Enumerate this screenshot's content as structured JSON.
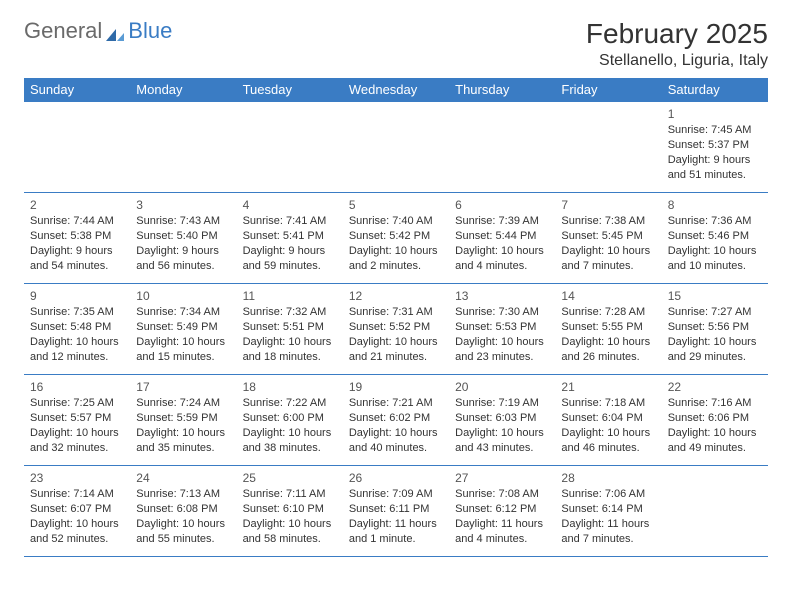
{
  "logo": {
    "part1": "General",
    "part2": "Blue"
  },
  "header": {
    "title": "February 2025",
    "location": "Stellanello, Liguria, Italy"
  },
  "colors": {
    "accent": "#3a7cc4",
    "text": "#333333",
    "muted": "#555555",
    "background": "#ffffff"
  },
  "typography": {
    "title_fontsize": 28,
    "location_fontsize": 16,
    "header_fontsize": 13,
    "cell_fontsize": 11,
    "daynum_fontsize": 12
  },
  "calendar": {
    "type": "table",
    "columns": [
      "Sunday",
      "Monday",
      "Tuesday",
      "Wednesday",
      "Thursday",
      "Friday",
      "Saturday"
    ],
    "weeks": [
      [
        null,
        null,
        null,
        null,
        null,
        null,
        {
          "n": "1",
          "sr": "7:45 AM",
          "ss": "5:37 PM",
          "dl": "9 hours and 51 minutes."
        }
      ],
      [
        {
          "n": "2",
          "sr": "7:44 AM",
          "ss": "5:38 PM",
          "dl": "9 hours and 54 minutes."
        },
        {
          "n": "3",
          "sr": "7:43 AM",
          "ss": "5:40 PM",
          "dl": "9 hours and 56 minutes."
        },
        {
          "n": "4",
          "sr": "7:41 AM",
          "ss": "5:41 PM",
          "dl": "9 hours and 59 minutes."
        },
        {
          "n": "5",
          "sr": "7:40 AM",
          "ss": "5:42 PM",
          "dl": "10 hours and 2 minutes."
        },
        {
          "n": "6",
          "sr": "7:39 AM",
          "ss": "5:44 PM",
          "dl": "10 hours and 4 minutes."
        },
        {
          "n": "7",
          "sr": "7:38 AM",
          "ss": "5:45 PM",
          "dl": "10 hours and 7 minutes."
        },
        {
          "n": "8",
          "sr": "7:36 AM",
          "ss": "5:46 PM",
          "dl": "10 hours and 10 minutes."
        }
      ],
      [
        {
          "n": "9",
          "sr": "7:35 AM",
          "ss": "5:48 PM",
          "dl": "10 hours and 12 minutes."
        },
        {
          "n": "10",
          "sr": "7:34 AM",
          "ss": "5:49 PM",
          "dl": "10 hours and 15 minutes."
        },
        {
          "n": "11",
          "sr": "7:32 AM",
          "ss": "5:51 PM",
          "dl": "10 hours and 18 minutes."
        },
        {
          "n": "12",
          "sr": "7:31 AM",
          "ss": "5:52 PM",
          "dl": "10 hours and 21 minutes."
        },
        {
          "n": "13",
          "sr": "7:30 AM",
          "ss": "5:53 PM",
          "dl": "10 hours and 23 minutes."
        },
        {
          "n": "14",
          "sr": "7:28 AM",
          "ss": "5:55 PM",
          "dl": "10 hours and 26 minutes."
        },
        {
          "n": "15",
          "sr": "7:27 AM",
          "ss": "5:56 PM",
          "dl": "10 hours and 29 minutes."
        }
      ],
      [
        {
          "n": "16",
          "sr": "7:25 AM",
          "ss": "5:57 PM",
          "dl": "10 hours and 32 minutes."
        },
        {
          "n": "17",
          "sr": "7:24 AM",
          "ss": "5:59 PM",
          "dl": "10 hours and 35 minutes."
        },
        {
          "n": "18",
          "sr": "7:22 AM",
          "ss": "6:00 PM",
          "dl": "10 hours and 38 minutes."
        },
        {
          "n": "19",
          "sr": "7:21 AM",
          "ss": "6:02 PM",
          "dl": "10 hours and 40 minutes."
        },
        {
          "n": "20",
          "sr": "7:19 AM",
          "ss": "6:03 PM",
          "dl": "10 hours and 43 minutes."
        },
        {
          "n": "21",
          "sr": "7:18 AM",
          "ss": "6:04 PM",
          "dl": "10 hours and 46 minutes."
        },
        {
          "n": "22",
          "sr": "7:16 AM",
          "ss": "6:06 PM",
          "dl": "10 hours and 49 minutes."
        }
      ],
      [
        {
          "n": "23",
          "sr": "7:14 AM",
          "ss": "6:07 PM",
          "dl": "10 hours and 52 minutes."
        },
        {
          "n": "24",
          "sr": "7:13 AM",
          "ss": "6:08 PM",
          "dl": "10 hours and 55 minutes."
        },
        {
          "n": "25",
          "sr": "7:11 AM",
          "ss": "6:10 PM",
          "dl": "10 hours and 58 minutes."
        },
        {
          "n": "26",
          "sr": "7:09 AM",
          "ss": "6:11 PM",
          "dl": "11 hours and 1 minute."
        },
        {
          "n": "27",
          "sr": "7:08 AM",
          "ss": "6:12 PM",
          "dl": "11 hours and 4 minutes."
        },
        {
          "n": "28",
          "sr": "7:06 AM",
          "ss": "6:14 PM",
          "dl": "11 hours and 7 minutes."
        },
        null
      ]
    ],
    "labels": {
      "sunrise": "Sunrise:",
      "sunset": "Sunset:",
      "daylight": "Daylight:"
    }
  }
}
